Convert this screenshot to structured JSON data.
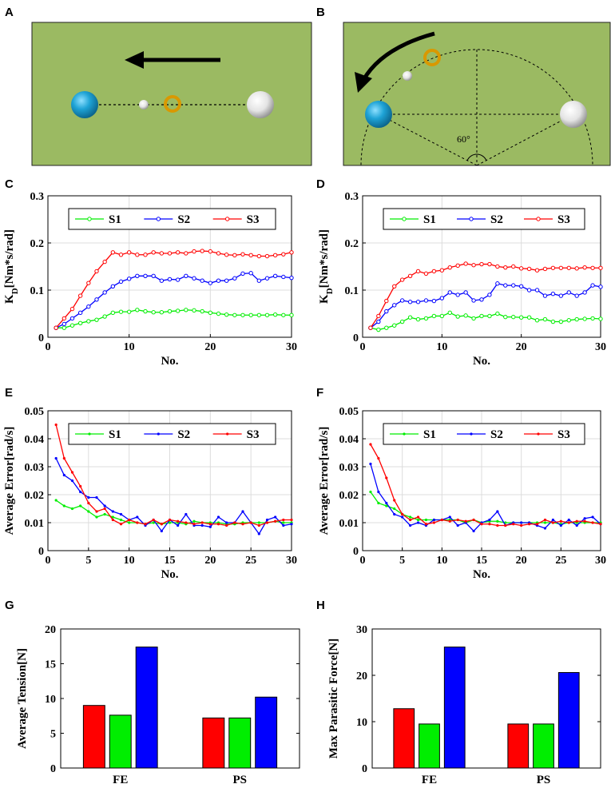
{
  "panels": {
    "A": "A",
    "B": "B",
    "C": "C",
    "D": "D",
    "E": "E",
    "F": "F",
    "G": "G",
    "H": "H"
  },
  "diagram_b": {
    "angle_label": "60°"
  },
  "colors": {
    "S1": "#00ee00",
    "S2": "#0000ff",
    "S3": "#ff0000",
    "field": "#9bba62",
    "blue_ball": "#1ea3d6",
    "ring": "#d99800"
  },
  "chart_data": [
    {
      "id": "C",
      "type": "line",
      "ylabel": "K_D[Nm*s/rad]",
      "xlabel": "No.",
      "xlim": [
        0,
        30
      ],
      "ylim": [
        0,
        0.3
      ],
      "xticks": [
        0,
        10,
        20,
        30
      ],
      "yticks": [
        0,
        0.1,
        0.2,
        0.3
      ],
      "ytick_labels": [
        "0",
        "0.1",
        "0.2",
        "0.3"
      ],
      "marker": "circle",
      "x": [
        1,
        2,
        3,
        4,
        5,
        6,
        7,
        8,
        9,
        10,
        11,
        12,
        13,
        14,
        15,
        16,
        17,
        18,
        19,
        20,
        21,
        22,
        23,
        24,
        25,
        26,
        27,
        28,
        29,
        30
      ],
      "series": [
        {
          "name": "S1",
          "values": [
            0.02,
            0.02,
            0.025,
            0.03,
            0.034,
            0.037,
            0.044,
            0.052,
            0.054,
            0.054,
            0.058,
            0.055,
            0.053,
            0.053,
            0.055,
            0.056,
            0.058,
            0.057,
            0.055,
            0.052,
            0.05,
            0.048,
            0.047,
            0.047,
            0.047,
            0.047,
            0.047,
            0.048,
            0.047,
            0.047
          ]
        },
        {
          "name": "S2",
          "values": [
            0.02,
            0.028,
            0.04,
            0.052,
            0.065,
            0.08,
            0.095,
            0.108,
            0.118,
            0.124,
            0.13,
            0.13,
            0.13,
            0.12,
            0.123,
            0.122,
            0.13,
            0.125,
            0.12,
            0.115,
            0.12,
            0.12,
            0.125,
            0.135,
            0.136,
            0.12,
            0.125,
            0.13,
            0.128,
            0.126
          ]
        },
        {
          "name": "S3",
          "values": [
            0.02,
            0.04,
            0.06,
            0.088,
            0.115,
            0.14,
            0.16,
            0.18,
            0.175,
            0.18,
            0.175,
            0.175,
            0.18,
            0.178,
            0.178,
            0.18,
            0.178,
            0.182,
            0.183,
            0.182,
            0.178,
            0.175,
            0.174,
            0.176,
            0.174,
            0.172,
            0.172,
            0.174,
            0.176,
            0.18
          ]
        }
      ]
    },
    {
      "id": "D",
      "type": "line",
      "ylabel": "K_D[Nm*s/rad]",
      "xlabel": "No.",
      "xlim": [
        0,
        30
      ],
      "ylim": [
        0,
        0.3
      ],
      "xticks": [
        0,
        10,
        20,
        30
      ],
      "yticks": [
        0,
        0.1,
        0.2,
        0.3
      ],
      "ytick_labels": [
        "0",
        "0.1",
        "0.2",
        "0.3"
      ],
      "marker": "circle",
      "x": [
        1,
        2,
        3,
        4,
        5,
        6,
        7,
        8,
        9,
        10,
        11,
        12,
        13,
        14,
        15,
        16,
        17,
        18,
        19,
        20,
        21,
        22,
        23,
        24,
        25,
        26,
        27,
        28,
        29,
        30
      ],
      "series": [
        {
          "name": "S1",
          "values": [
            0.02,
            0.016,
            0.02,
            0.025,
            0.033,
            0.042,
            0.038,
            0.04,
            0.045,
            0.045,
            0.052,
            0.044,
            0.046,
            0.04,
            0.045,
            0.045,
            0.05,
            0.043,
            0.043,
            0.042,
            0.042,
            0.036,
            0.038,
            0.033,
            0.033,
            0.036,
            0.038,
            0.039,
            0.04,
            0.039
          ]
        },
        {
          "name": "S2",
          "values": [
            0.02,
            0.033,
            0.055,
            0.068,
            0.078,
            0.075,
            0.075,
            0.078,
            0.077,
            0.083,
            0.095,
            0.09,
            0.095,
            0.078,
            0.08,
            0.09,
            0.114,
            0.11,
            0.11,
            0.108,
            0.1,
            0.1,
            0.088,
            0.092,
            0.088,
            0.095,
            0.088,
            0.095,
            0.11,
            0.107
          ]
        },
        {
          "name": "S3",
          "values": [
            0.02,
            0.045,
            0.077,
            0.108,
            0.122,
            0.13,
            0.14,
            0.135,
            0.14,
            0.142,
            0.148,
            0.152,
            0.156,
            0.153,
            0.155,
            0.155,
            0.15,
            0.148,
            0.15,
            0.146,
            0.145,
            0.142,
            0.145,
            0.147,
            0.147,
            0.147,
            0.146,
            0.148,
            0.147,
            0.147
          ]
        }
      ]
    },
    {
      "id": "E",
      "type": "line",
      "ylabel": "Average Error[rad/s]",
      "xlabel": "No.",
      "xlim": [
        0,
        30
      ],
      "ylim": [
        0,
        0.05
      ],
      "xticks": [
        0,
        5,
        10,
        15,
        20,
        25,
        30
      ],
      "yticks": [
        0,
        0.01,
        0.02,
        0.03,
        0.04,
        0.05
      ],
      "ytick_labels": [
        "0",
        "0.01",
        "0.02",
        "0.03",
        "0.04",
        "0.05"
      ],
      "marker": "dot",
      "x": [
        1,
        2,
        3,
        4,
        5,
        6,
        7,
        8,
        9,
        10,
        11,
        12,
        13,
        14,
        15,
        16,
        17,
        18,
        19,
        20,
        21,
        22,
        23,
        24,
        25,
        26,
        27,
        28,
        29,
        30
      ],
      "series": [
        {
          "name": "S1",
          "values": [
            0.018,
            0.016,
            0.015,
            0.016,
            0.014,
            0.012,
            0.013,
            0.012,
            0.011,
            0.01,
            0.01,
            0.0095,
            0.01,
            0.0095,
            0.01,
            0.01,
            0.0095,
            0.0105,
            0.01,
            0.01,
            0.01,
            0.0095,
            0.0095,
            0.01,
            0.01,
            0.01,
            0.01,
            0.0105,
            0.01,
            0.01
          ]
        },
        {
          "name": "S2",
          "values": [
            0.033,
            0.027,
            0.025,
            0.021,
            0.019,
            0.019,
            0.016,
            0.014,
            0.013,
            0.011,
            0.012,
            0.009,
            0.011,
            0.007,
            0.011,
            0.009,
            0.013,
            0.009,
            0.009,
            0.0085,
            0.012,
            0.01,
            0.01,
            0.014,
            0.01,
            0.006,
            0.011,
            0.012,
            0.009,
            0.0095
          ]
        },
        {
          "name": "S3",
          "values": [
            0.045,
            0.033,
            0.028,
            0.023,
            0.017,
            0.014,
            0.015,
            0.011,
            0.0095,
            0.011,
            0.01,
            0.0095,
            0.011,
            0.0095,
            0.011,
            0.0105,
            0.01,
            0.0095,
            0.01,
            0.0095,
            0.0095,
            0.009,
            0.01,
            0.0095,
            0.01,
            0.009,
            0.01,
            0.0105,
            0.011,
            0.011
          ]
        }
      ]
    },
    {
      "id": "F",
      "type": "line",
      "ylabel": "Average Error[rad/s]",
      "xlabel": "No.",
      "xlim": [
        0,
        30
      ],
      "ylim": [
        0,
        0.05
      ],
      "xticks": [
        0,
        5,
        10,
        15,
        20,
        25,
        30
      ],
      "yticks": [
        0,
        0.01,
        0.02,
        0.03,
        0.04,
        0.05
      ],
      "ytick_labels": [
        "0",
        "0.01",
        "0.02",
        "0.03",
        "0.04",
        "0.05"
      ],
      "marker": "dot",
      "x": [
        1,
        2,
        3,
        4,
        5,
        6,
        7,
        8,
        9,
        10,
        11,
        12,
        13,
        14,
        15,
        16,
        17,
        18,
        19,
        20,
        21,
        22,
        23,
        24,
        25,
        26,
        27,
        28,
        29,
        30
      ],
      "series": [
        {
          "name": "S1",
          "values": [
            0.021,
            0.017,
            0.016,
            0.015,
            0.013,
            0.012,
            0.011,
            0.011,
            0.011,
            0.011,
            0.011,
            0.011,
            0.01,
            0.011,
            0.01,
            0.0105,
            0.0105,
            0.01,
            0.01,
            0.01,
            0.01,
            0.01,
            0.01,
            0.01,
            0.0095,
            0.01,
            0.01,
            0.01,
            0.01,
            0.01
          ]
        },
        {
          "name": "S2",
          "values": [
            0.031,
            0.021,
            0.017,
            0.013,
            0.012,
            0.009,
            0.01,
            0.009,
            0.011,
            0.011,
            0.012,
            0.009,
            0.01,
            0.007,
            0.01,
            0.011,
            0.014,
            0.009,
            0.01,
            0.01,
            0.01,
            0.009,
            0.008,
            0.011,
            0.009,
            0.011,
            0.009,
            0.0115,
            0.012,
            0.0095
          ]
        },
        {
          "name": "S3",
          "values": [
            0.038,
            0.033,
            0.026,
            0.018,
            0.013,
            0.011,
            0.012,
            0.0095,
            0.01,
            0.011,
            0.0105,
            0.011,
            0.0105,
            0.011,
            0.0095,
            0.0095,
            0.009,
            0.009,
            0.0095,
            0.009,
            0.0095,
            0.0095,
            0.011,
            0.01,
            0.0105,
            0.01,
            0.0105,
            0.0105,
            0.01,
            0.0095
          ]
        }
      ]
    },
    {
      "id": "G",
      "type": "bar",
      "ylabel": "Average Tension[N]",
      "xlabel": "",
      "categories": [
        "FE",
        "PS"
      ],
      "ylim": [
        0,
        20
      ],
      "yticks": [
        0,
        5,
        10,
        15,
        20
      ],
      "ytick_labels": [
        "0",
        "5",
        "10",
        "15",
        "20"
      ],
      "series": [
        {
          "name": "S3",
          "values": [
            9.0,
            7.2
          ]
        },
        {
          "name": "S1",
          "values": [
            7.6,
            7.2
          ]
        },
        {
          "name": "S2",
          "values": [
            17.4,
            10.2
          ]
        }
      ]
    },
    {
      "id": "H",
      "type": "bar",
      "ylabel": "Max Parasitic Force[N]",
      "xlabel": "",
      "categories": [
        "FE",
        "PS"
      ],
      "ylim": [
        0,
        30
      ],
      "yticks": [
        0,
        10,
        20,
        30
      ],
      "ytick_labels": [
        "0",
        "10",
        "20",
        "30"
      ],
      "series": [
        {
          "name": "S3",
          "values": [
            12.8,
            9.5
          ]
        },
        {
          "name": "S1",
          "values": [
            9.5,
            9.5
          ]
        },
        {
          "name": "S2",
          "values": [
            26.1,
            20.6
          ]
        }
      ]
    }
  ]
}
